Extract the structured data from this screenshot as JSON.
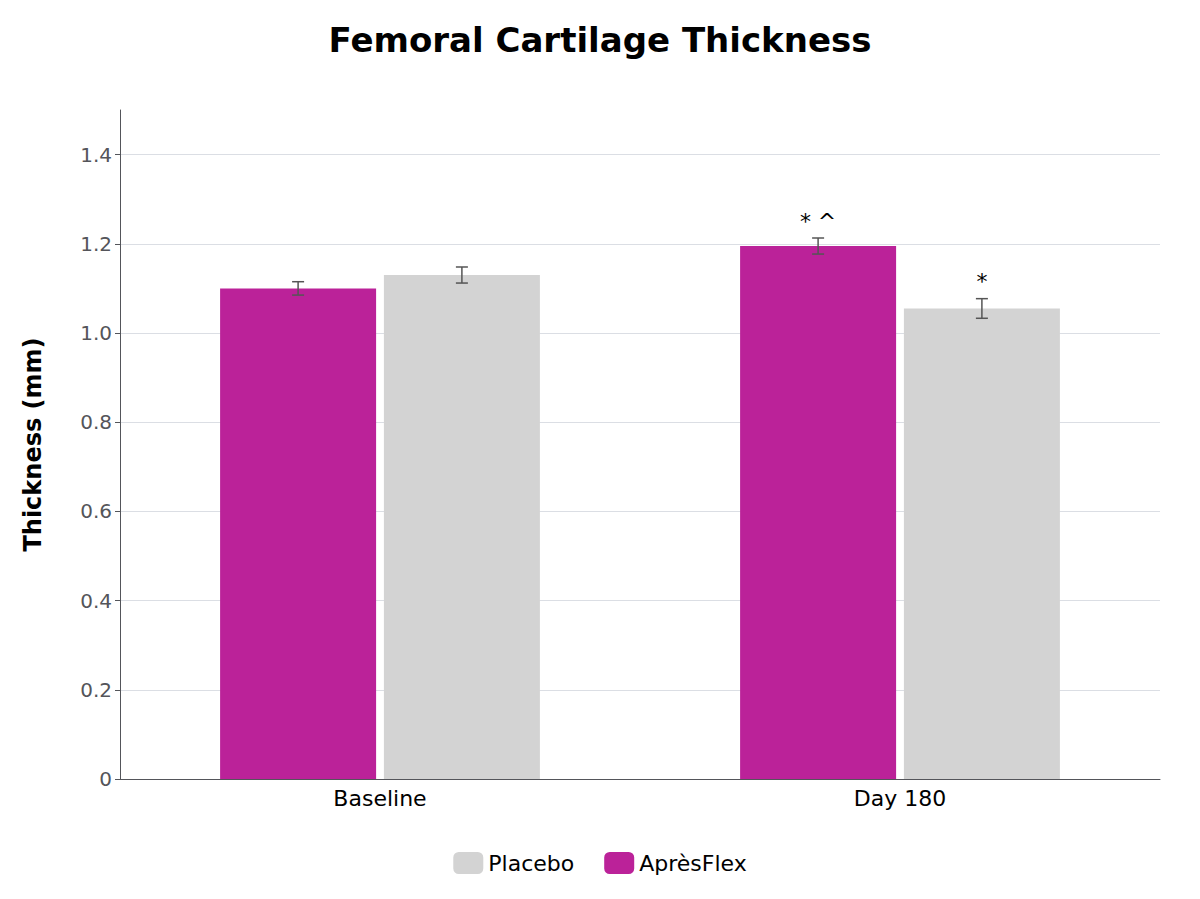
{
  "chart_data": {
    "type": "bar",
    "title": "Femoral Cartilage Thickness",
    "ylabel": "Thickness (mm)",
    "categories": [
      "Baseline",
      "Day 180"
    ],
    "series": [
      {
        "name": "AprèsFlex",
        "color": "#BB2299",
        "values": [
          1.1,
          1.195
        ],
        "errors": [
          0.015,
          0.018
        ]
      },
      {
        "name": "Placebo",
        "color": "#D3D3D3",
        "values": [
          1.13,
          1.055
        ],
        "errors": [
          0.018,
          0.022
        ]
      }
    ],
    "ylim": [
      0,
      1.5
    ],
    "yticks": [
      0,
      0.2,
      0.4,
      0.6,
      0.8,
      {
        "value": 1.0,
        "label": "1.0"
      },
      1.2,
      1.4
    ],
    "grid": true,
    "legend": "bottom",
    "annotations": [
      {
        "text": "* ^",
        "series": "AprèsFlex",
        "category": "Day 180"
      },
      {
        "text": "*",
        "series": "Placebo",
        "category": "Day 180"
      }
    ]
  }
}
